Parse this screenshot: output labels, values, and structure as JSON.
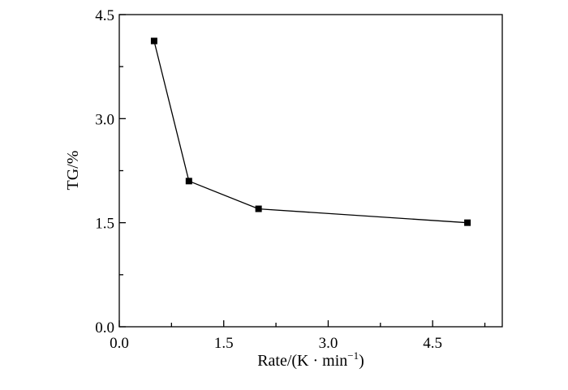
{
  "chart_data": {
    "type": "line",
    "xlabel_main": "Rate",
    "xlabel_unit_open": "/(K · min",
    "xlabel_unit_exp": "−1",
    "xlabel_unit_close": ")",
    "ylabel": "TG/%",
    "xlim": [
      0.0,
      5.5
    ],
    "ylim": [
      0.0,
      4.5
    ],
    "x_ticks": [
      0.0,
      1.5,
      3.0,
      4.5
    ],
    "x_tick_labels": [
      "0.0",
      "1.5",
      "3.0",
      "4.5"
    ],
    "y_ticks": [
      0.0,
      1.5,
      3.0,
      4.5
    ],
    "y_tick_labels": [
      "0.0",
      "1.5",
      "3.0",
      "4.5"
    ],
    "grid": false,
    "marker": "square",
    "line_color": "#000000",
    "series": [
      {
        "x": [
          0.5,
          1.0,
          2.0,
          5.0
        ],
        "y": [
          4.12,
          2.1,
          1.7,
          1.5
        ]
      }
    ]
  }
}
